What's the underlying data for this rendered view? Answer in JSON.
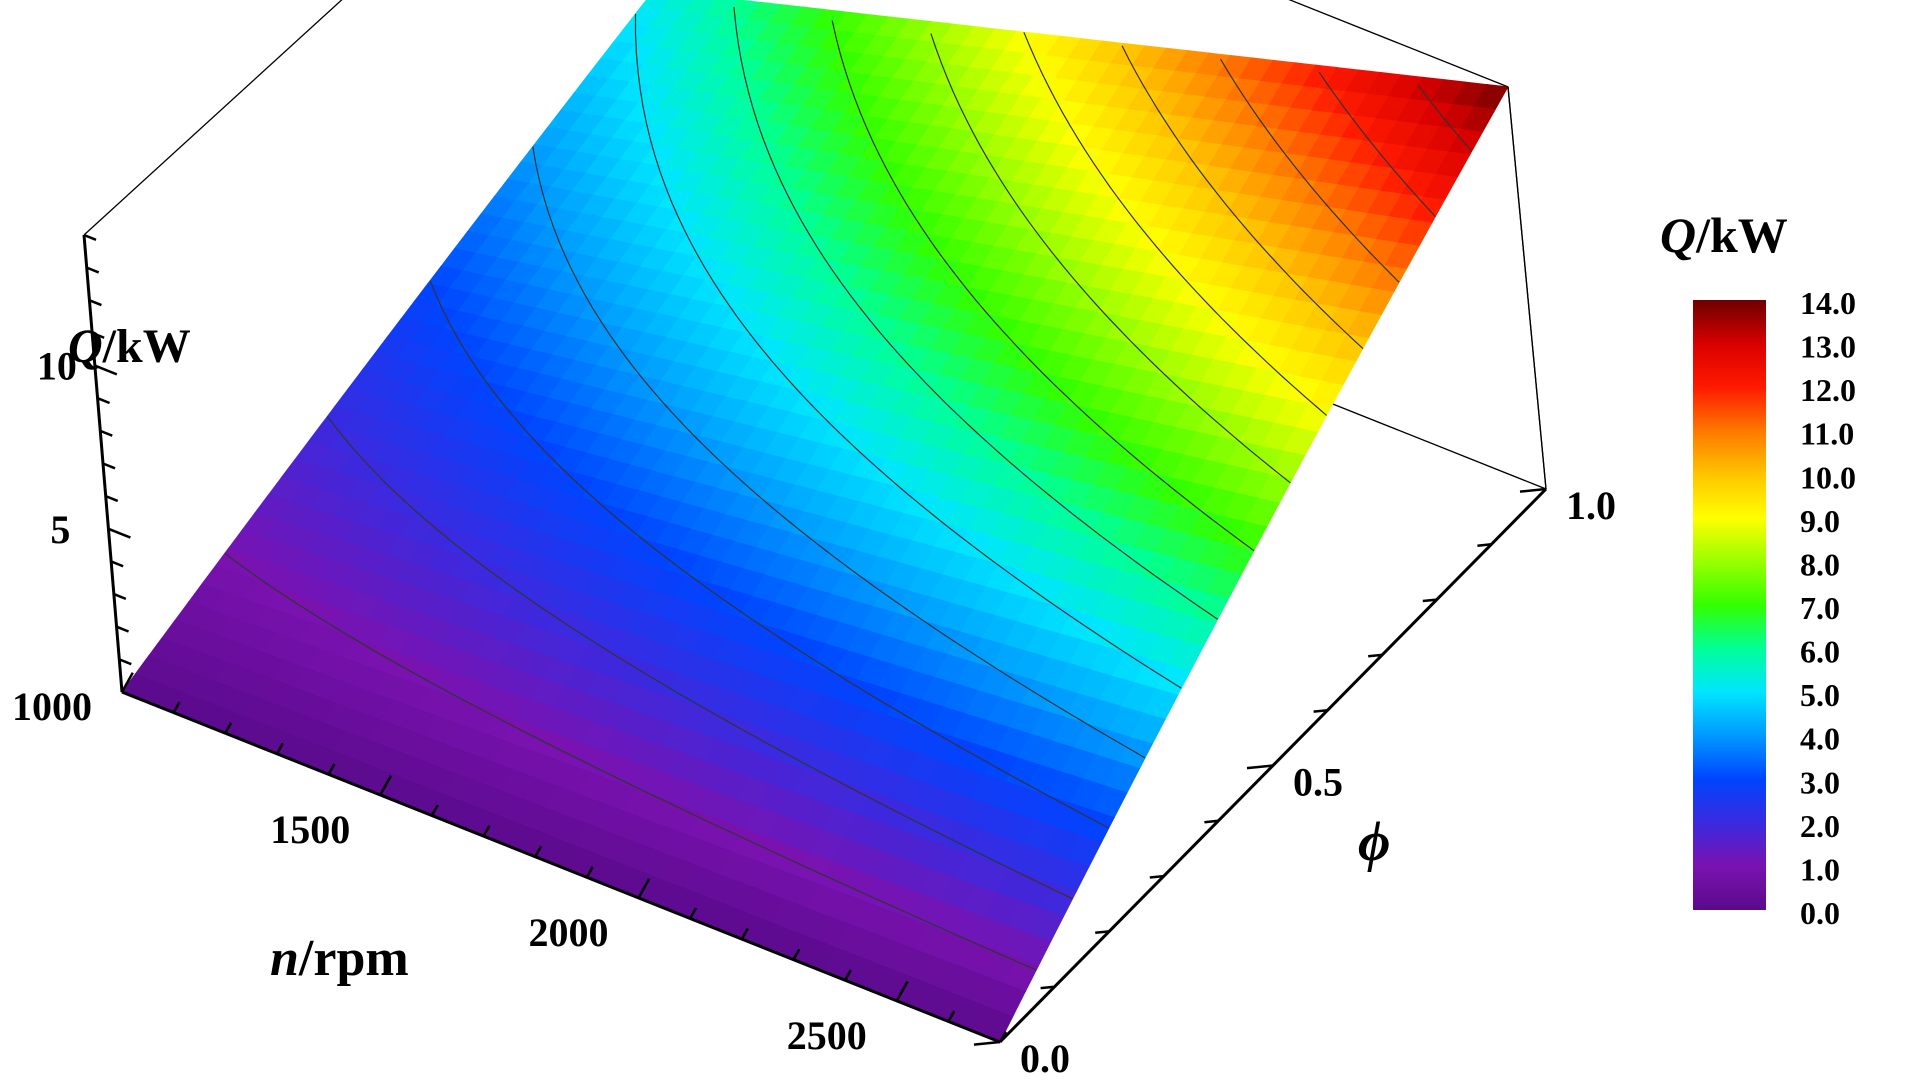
{
  "chart_data": {
    "type": "surface3d",
    "title": "",
    "axes": {
      "x": {
        "label_var": "n",
        "label_unit": "/rpm",
        "range": [
          1000,
          2700
        ],
        "ticks": [
          1000,
          1500,
          2000,
          2500
        ],
        "tick_labels": [
          "1000",
          "1500",
          "2000",
          "2500"
        ]
      },
      "y": {
        "label_var": "ϕ",
        "label_unit": "",
        "range": [
          0.0,
          1.0
        ],
        "ticks": [
          0.0,
          0.5,
          1.0
        ],
        "tick_labels": [
          "0.0",
          "0.5",
          "1.0"
        ]
      },
      "z": {
        "label_var": "Q",
        "label_unit": "/kW",
        "range": [
          0,
          14
        ],
        "ticks": [
          5,
          10
        ],
        "tick_labels": [
          "5",
          "10"
        ]
      }
    },
    "colorbar": {
      "label_var": "Q",
      "label_unit": "/kW",
      "range": [
        0,
        14
      ],
      "ticks": [
        0.0,
        1.0,
        2.0,
        3.0,
        4.0,
        5.0,
        6.0,
        7.0,
        8.0,
        9.0,
        10.0,
        11.0,
        12.0,
        13.0,
        14.0
      ],
      "tick_labels": [
        "0.0",
        "1.0",
        "2.0",
        "3.0",
        "4.0",
        "5.0",
        "6.0",
        "7.0",
        "8.0",
        "9.0",
        "10.0",
        "11.0",
        "12.0",
        "13.0",
        "14.0"
      ],
      "colors": [
        "#5a0a8c",
        "#7a12b0",
        "#3a2ae0",
        "#0044ff",
        "#0099ff",
        "#00e5ff",
        "#00ff99",
        "#33ff00",
        "#99ff00",
        "#ffff00",
        "#ffc400",
        "#ff7800",
        "#ff1a00",
        "#d80000",
        "#6e0000"
      ]
    },
    "surface": {
      "description_model": "Q increases with n and phi; roughly linear, max ~14 kW at n=2700, phi=1.0",
      "sample_points": [
        {
          "n": 1000,
          "phi": 0.0,
          "Q": 0.0
        },
        {
          "n": 1000,
          "phi": 0.5,
          "Q": 2.6
        },
        {
          "n": 1000,
          "phi": 1.0,
          "Q": 5.2
        },
        {
          "n": 1500,
          "phi": 1.0,
          "Q": 7.8
        },
        {
          "n": 2000,
          "phi": 1.0,
          "Q": 10.3
        },
        {
          "n": 2500,
          "phi": 1.0,
          "Q": 12.9
        },
        {
          "n": 2700,
          "phi": 1.0,
          "Q": 14.0
        },
        {
          "n": 2700,
          "phi": 0.5,
          "Q": 7.0
        },
        {
          "n": 2700,
          "phi": 0.0,
          "Q": 0.0
        }
      ],
      "contour_levels": [
        1,
        2,
        3,
        4,
        5,
        6,
        7,
        8,
        9,
        10,
        11,
        12,
        13
      ]
    }
  }
}
